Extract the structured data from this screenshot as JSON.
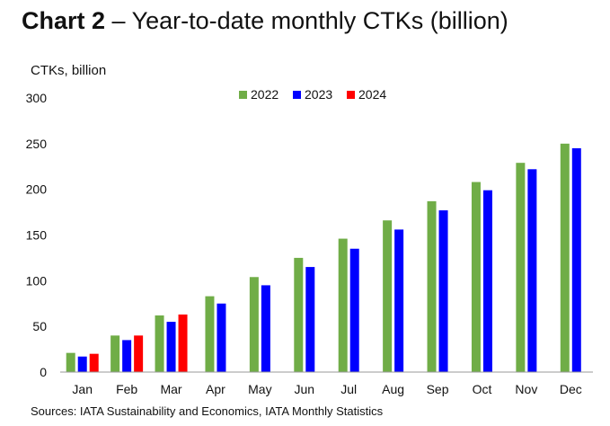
{
  "title": {
    "lead": "Chart 2",
    "rest": " – Year-to-date monthly CTKs (billion)"
  },
  "source": "Sources: IATA Sustainability and Economics, IATA Monthly Statistics",
  "chart_data": {
    "type": "bar",
    "ylabel": "CTKs, billion",
    "ylim": [
      0,
      300
    ],
    "yticks": [
      0,
      50,
      100,
      150,
      200,
      250,
      300
    ],
    "grid": false,
    "legend_position": "top-center",
    "categories": [
      "Jan",
      "Feb",
      "Mar",
      "Apr",
      "May",
      "Jun",
      "Jul",
      "Aug",
      "Sep",
      "Oct",
      "Nov",
      "Dec"
    ],
    "series": [
      {
        "name": "2022",
        "color": "#70AD47",
        "values": [
          21,
          40,
          62,
          83,
          104,
          125,
          146,
          166,
          187,
          208,
          229,
          250
        ]
      },
      {
        "name": "2023",
        "color": "#0000FF",
        "values": [
          17,
          35,
          55,
          75,
          95,
          115,
          135,
          156,
          177,
          199,
          222,
          245
        ]
      },
      {
        "name": "2024",
        "color": "#FF0000",
        "values": [
          20,
          40,
          63,
          null,
          null,
          null,
          null,
          null,
          null,
          null,
          null,
          null
        ]
      }
    ]
  }
}
